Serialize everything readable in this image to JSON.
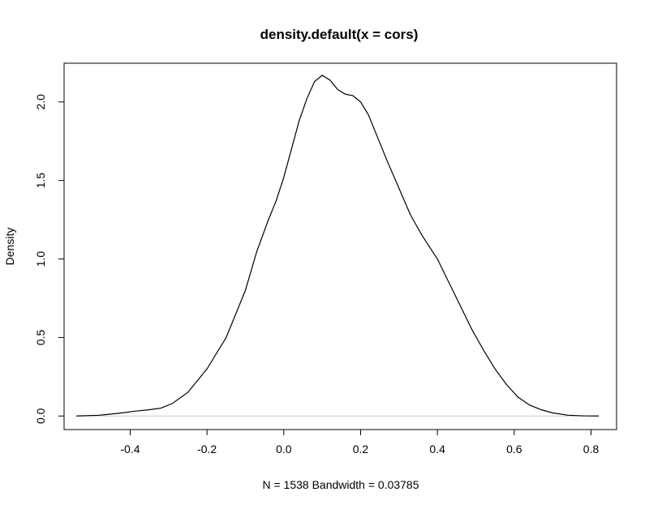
{
  "chart_data": {
    "type": "line",
    "title": "density.default(x = cors)",
    "xlabel": "N = 1538   Bandwidth = 0.03785",
    "ylabel": "Density",
    "xlim": [
      -0.5721,
      0.8665
    ],
    "ylim": [
      -0.0864,
      2.2468
    ],
    "x_ticks": [
      -0.4,
      -0.2,
      0.0,
      0.2,
      0.4,
      0.6,
      0.8
    ],
    "x_tick_labels": [
      "-0.4",
      "-0.2",
      "0.0",
      "0.2",
      "0.4",
      "0.6",
      "0.8"
    ],
    "y_ticks": [
      0.0,
      0.5,
      1.0,
      1.5,
      2.0
    ],
    "y_tick_labels": [
      "0.0",
      "0.5",
      "1.0",
      "1.5",
      "2.0"
    ],
    "zero_line": true,
    "grid": false,
    "series": [
      {
        "x": [
          -0.54,
          -0.48,
          -0.42,
          -0.39,
          -0.35,
          -0.32,
          -0.29,
          -0.25,
          -0.2,
          -0.15,
          -0.1,
          -0.07,
          -0.04,
          -0.02,
          0.0,
          0.02,
          0.04,
          0.06,
          0.08,
          0.1,
          0.12,
          0.14,
          0.16,
          0.18,
          0.2,
          0.22,
          0.24,
          0.27,
          0.3,
          0.33,
          0.36,
          0.4,
          0.43,
          0.46,
          0.49,
          0.52,
          0.55,
          0.58,
          0.61,
          0.64,
          0.67,
          0.7,
          0.74,
          0.78,
          0.82
        ],
        "y": [
          0.0,
          0.005,
          0.02,
          0.03,
          0.04,
          0.05,
          0.08,
          0.15,
          0.3,
          0.5,
          0.8,
          1.05,
          1.25,
          1.37,
          1.52,
          1.7,
          1.88,
          2.02,
          2.13,
          2.17,
          2.14,
          2.08,
          2.05,
          2.04,
          2.0,
          1.92,
          1.8,
          1.62,
          1.45,
          1.28,
          1.15,
          1.0,
          0.85,
          0.7,
          0.55,
          0.42,
          0.3,
          0.2,
          0.12,
          0.07,
          0.04,
          0.02,
          0.005,
          0.001,
          0.0
        ]
      }
    ]
  }
}
